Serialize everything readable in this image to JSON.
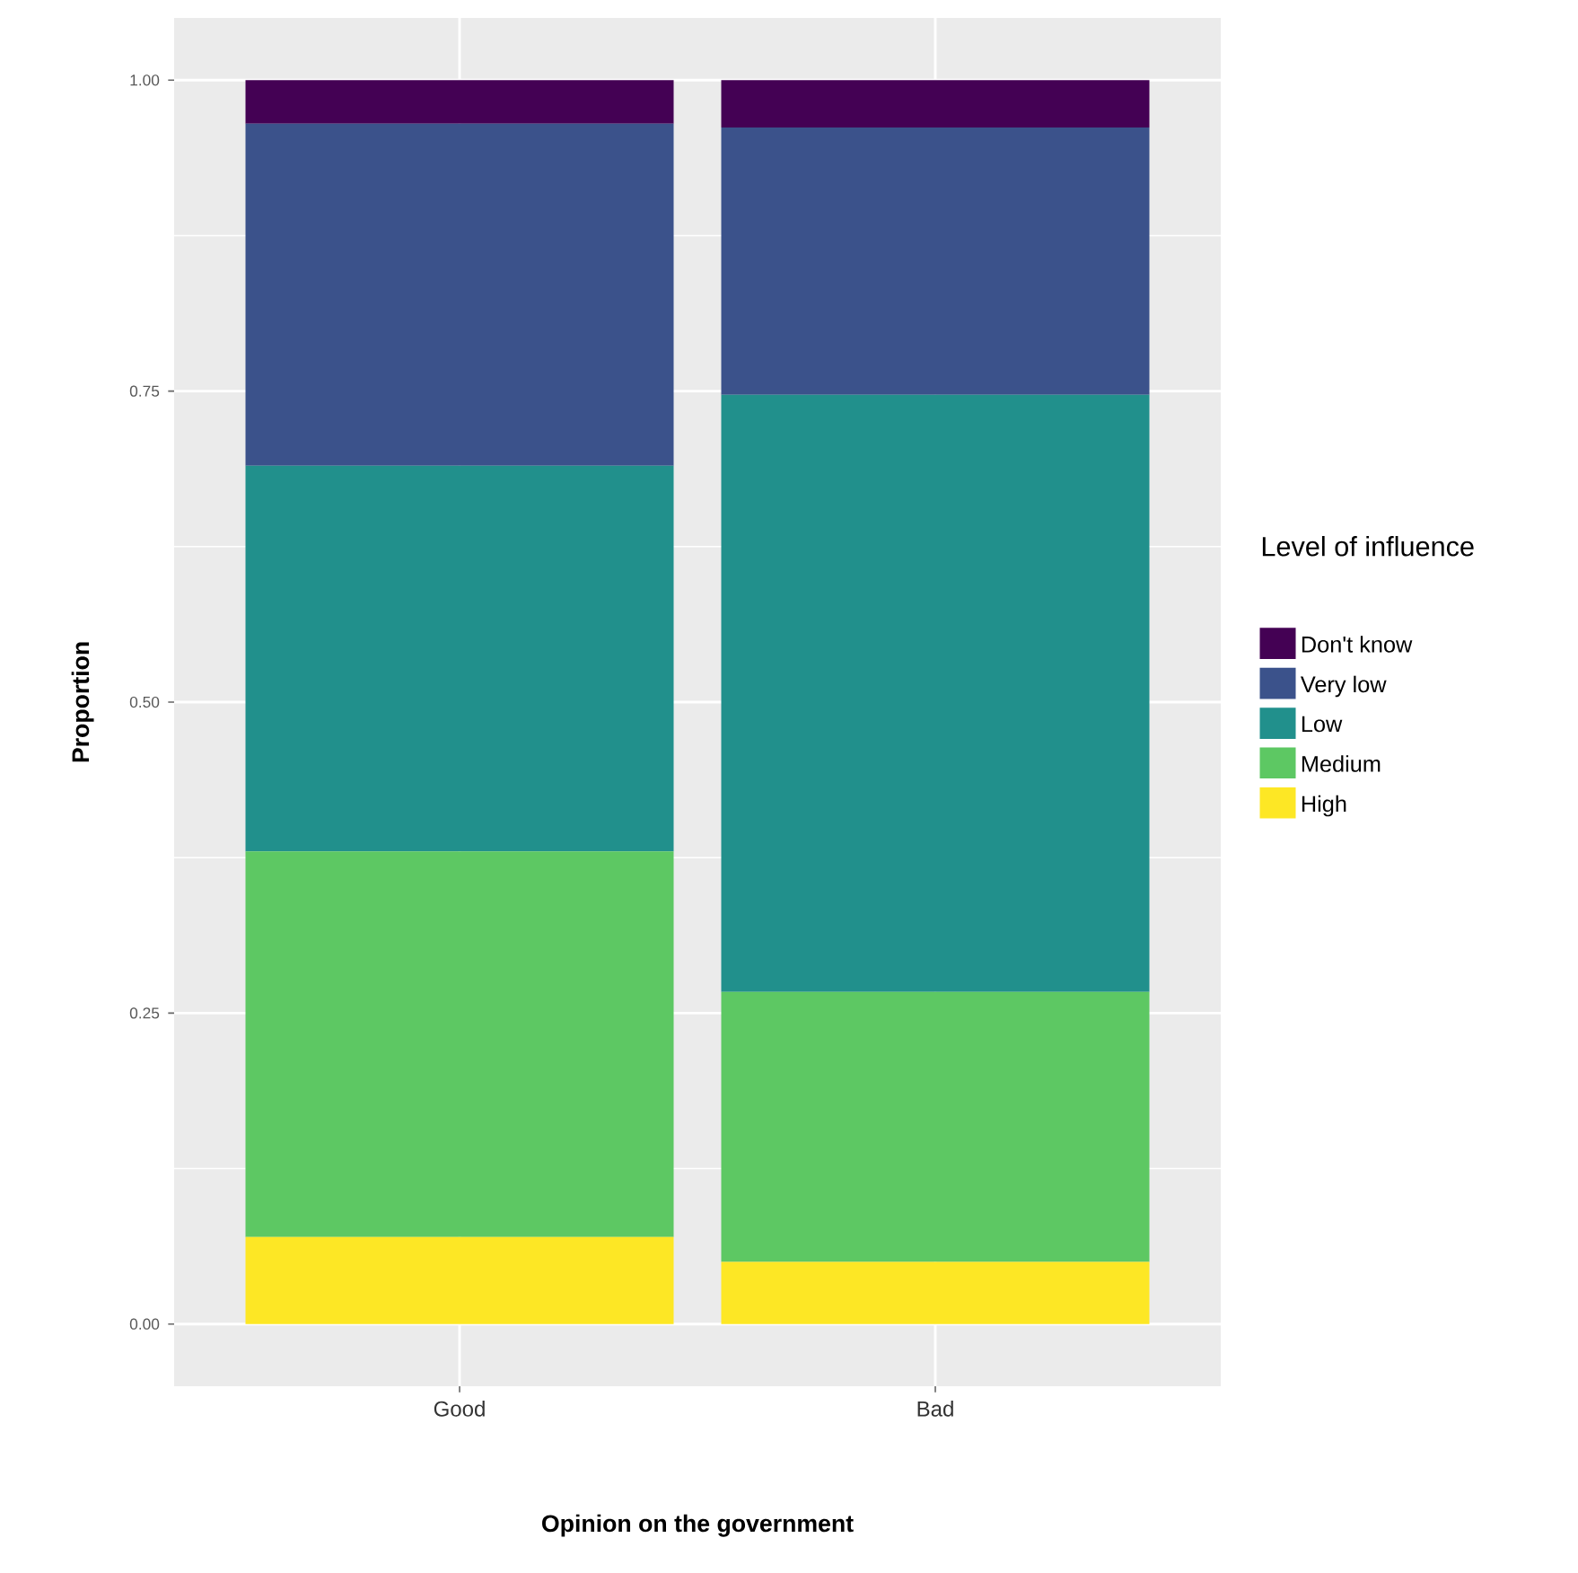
{
  "chart_data": {
    "type": "bar",
    "stacked": true,
    "categories": [
      "Good",
      "Bad"
    ],
    "xlabel": "Opinion on the government",
    "ylabel": "Proportion",
    "legend_title": "Level of influence",
    "legend": "right",
    "grid": true,
    "ylim": [
      -0.05,
      1.05
    ],
    "yticks": [
      {
        "value": 0,
        "label": "0.00"
      },
      {
        "value": 0.25,
        "label": "0.25"
      },
      {
        "value": 0.5,
        "label": "0.50"
      },
      {
        "value": 0.75,
        "label": "0.75"
      },
      {
        "value": 1,
        "label": "1.00"
      }
    ],
    "series": [
      {
        "name": "High",
        "color": "#fde725",
        "values": [
          0.07,
          0.05
        ]
      },
      {
        "name": "Medium",
        "color": "#5dc863",
        "values": [
          0.31,
          0.217
        ]
      },
      {
        "name": "Low",
        "color": "#21908c",
        "values": [
          0.31,
          0.48
        ]
      },
      {
        "name": "Very low",
        "color": "#3b528b",
        "values": [
          0.275,
          0.215
        ]
      },
      {
        "name": "Don't know",
        "color": "#440154",
        "values": [
          0.035,
          0.038
        ]
      }
    ]
  }
}
